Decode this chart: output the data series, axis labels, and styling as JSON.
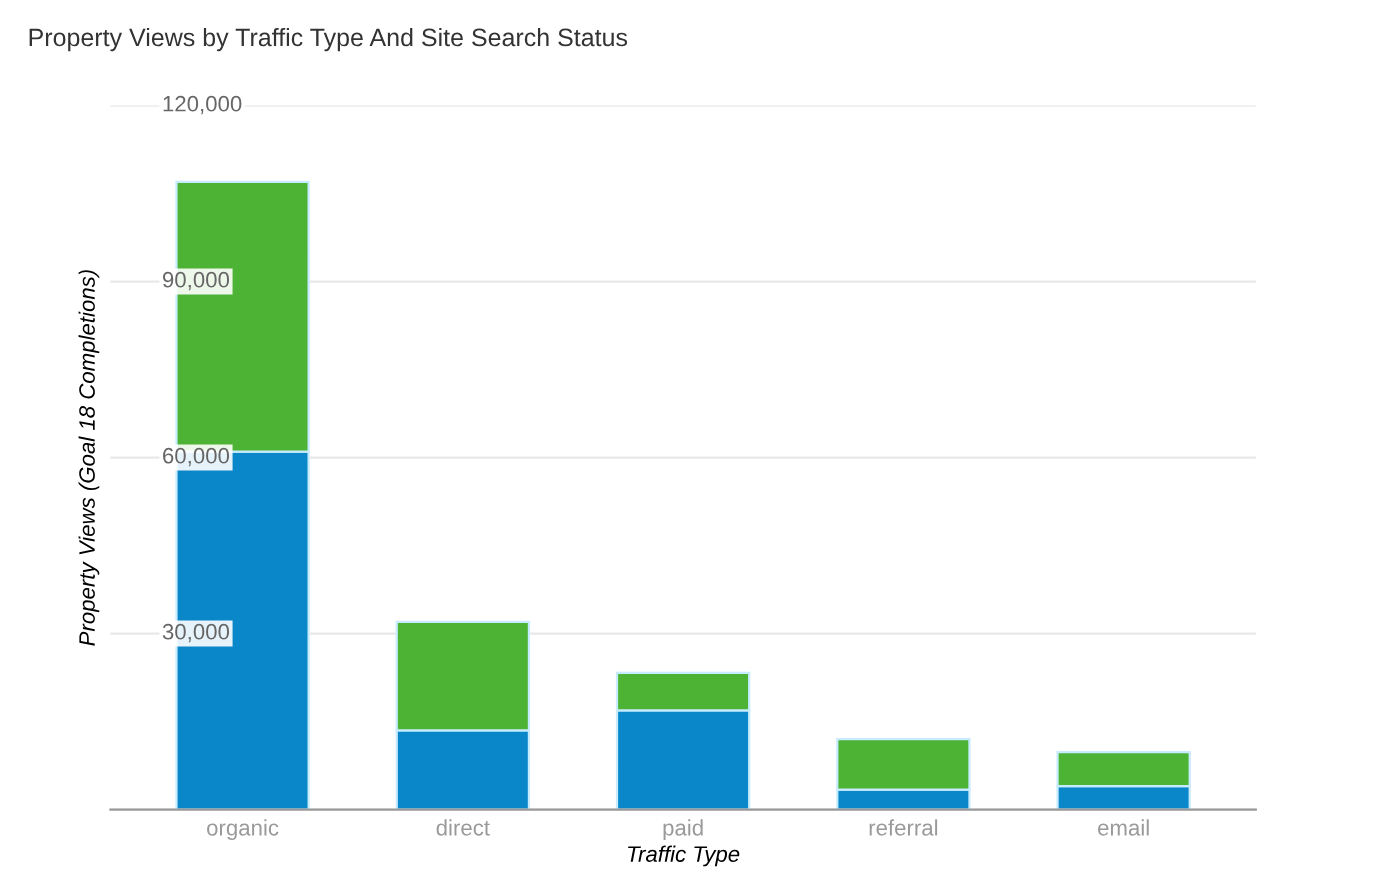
{
  "chart_data": {
    "type": "bar",
    "title": "Property Views by Traffic Type And Site Search Status",
    "xlabel": "Traffic Type",
    "ylabel": "Property Views (Goal 18 Completions)",
    "categories": [
      "organic",
      "direct",
      "paid",
      "referral",
      "email"
    ],
    "stacked": true,
    "series": [
      {
        "color": "#0a87c9",
        "values": [
          61000,
          13500,
          16900,
          3400,
          4000
        ]
      },
      {
        "color": "#4cb334",
        "values": [
          46000,
          18500,
          6400,
          8600,
          5800
        ]
      }
    ],
    "ylim": [
      0,
      120000
    ],
    "yticks": [
      {
        "value": 0,
        "label": null
      },
      {
        "value": 30000,
        "label": "30,000"
      },
      {
        "value": 60000,
        "label": "60,000"
      },
      {
        "value": 90000,
        "label": "90,000"
      },
      {
        "value": 120000,
        "label": "120,000"
      }
    ],
    "grid": "y",
    "legend": false
  }
}
